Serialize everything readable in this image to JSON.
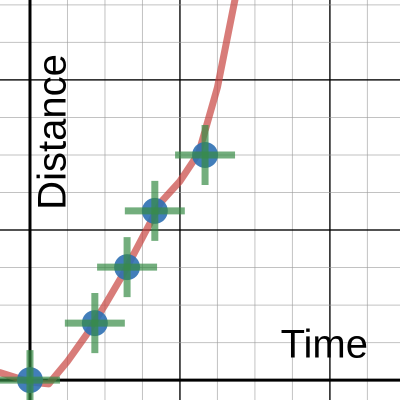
{
  "chart_data": {
    "type": "scatter",
    "x_label": "Time",
    "y_label": "Distance",
    "xlim": [
      -0.8,
      9.87
    ],
    "ylim": [
      -0.53,
      10.13
    ],
    "xgrid": [
      0,
      1,
      2,
      3,
      4,
      5,
      6,
      7,
      8,
      9
    ],
    "ygrid": [
      0,
      1,
      2,
      3,
      4,
      5,
      6,
      7,
      8,
      9,
      10
    ],
    "major_grid_every": 4,
    "curve": {
      "color": "#c74440",
      "x": [
        -0.8,
        0,
        0.5,
        1,
        1.5,
        2,
        2.5,
        3,
        3.5,
        4,
        4.5,
        5,
        5.5
      ],
      "y": [
        0.2,
        -0.05,
        -0.1,
        0.5,
        1.2,
        2.0,
        2.85,
        3.8,
        4.75,
        5.3,
        6.05,
        7.8,
        10.3
      ]
    },
    "points": {
      "color": "#2d70b3",
      "error_color": "#388c46",
      "x": [
        0,
        1.73,
        2.59,
        3.33,
        4.67
      ],
      "y": [
        0,
        1.52,
        3.01,
        4.51,
        6.0
      ],
      "xerr": [
        0.8,
        0.8,
        0.8,
        0.8,
        0.8
      ],
      "yerr": [
        0.8,
        0.8,
        0.8,
        0.8,
        0.8
      ]
    }
  }
}
